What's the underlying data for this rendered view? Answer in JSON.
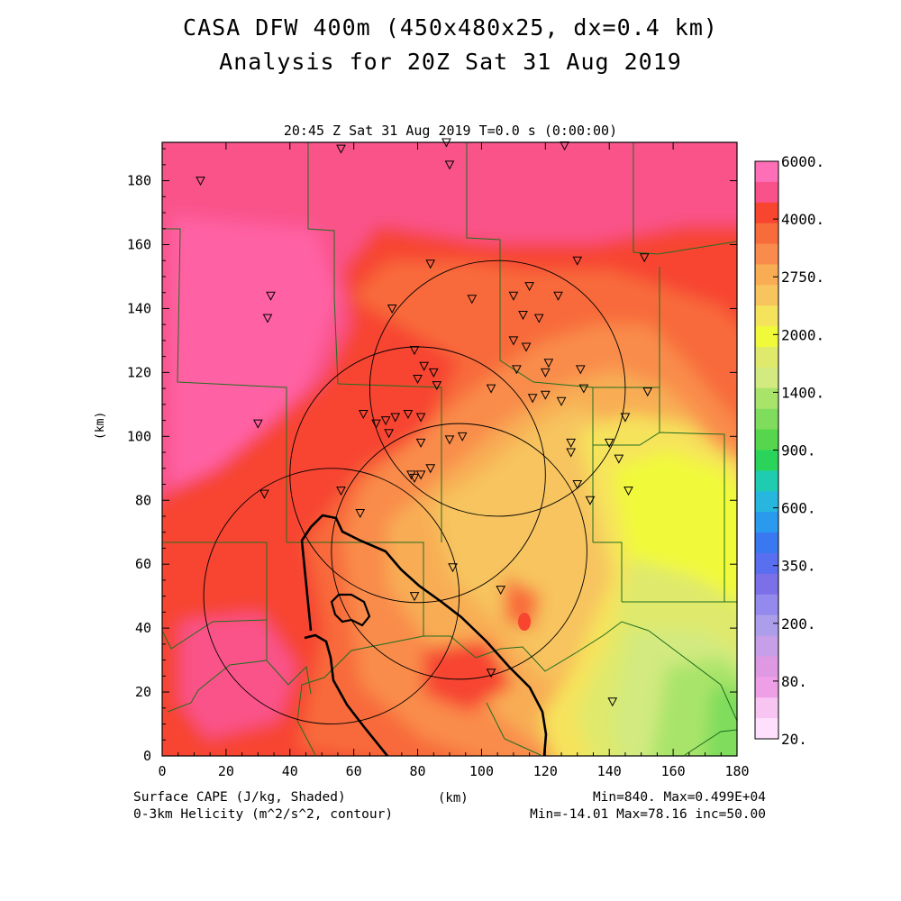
{
  "header": {
    "title_line1": "CASA DFW 400m (450x480x25, dx=0.4 km)",
    "title_line2": "Analysis for 20Z Sat 31 Aug 2019",
    "valid_time": "20:45 Z Sat 31 Aug 2019    T=0.0 s (0:00:00)"
  },
  "axes": {
    "xlabel": "(km)",
    "ylabel": "(km)",
    "x_ticks": [
      "0",
      "20",
      "40",
      "60",
      "80",
      "100",
      "120",
      "140",
      "160",
      "180"
    ],
    "y_ticks": [
      "0",
      "20",
      "40",
      "60",
      "80",
      "100",
      "120",
      "140",
      "160",
      "180"
    ],
    "xlim": [
      0,
      180
    ],
    "ylim": [
      0,
      192
    ]
  },
  "colorbar": {
    "labels": [
      "6000.",
      "4000.",
      "2750.",
      "2000.",
      "1400.",
      "900.",
      "600.",
      "350.",
      "200.",
      "80.",
      "20."
    ],
    "colors": [
      "#ff6fb8",
      "#f9528a",
      "#f74530",
      "#f86b3a",
      "#f98c4c",
      "#f8ad55",
      "#f7c45e",
      "#f6e35c",
      "#f1f93b",
      "#dfe96c",
      "#d2ea80",
      "#a9e46a",
      "#7fdc5c",
      "#55d64c",
      "#2ad45a",
      "#20ccb0",
      "#27b7de",
      "#2a9aee",
      "#3a78f2",
      "#5a6fef",
      "#7b70e8",
      "#9489ec",
      "#ad9eec",
      "#c79ee8",
      "#df98e2",
      "#ef9fe6",
      "#f8c4f2",
      "#ffe0fc"
    ]
  },
  "footer": {
    "field_shaded": "Surface CAPE (J/kg, Shaded)",
    "field_contour": "0-3km Helicity (m^2/s^2, contour)",
    "shaded_stats": "Min=840. Max=0.499E+04",
    "contour_stats": "Min=-14.01 Max=78.16 inc=50.00"
  },
  "map": {
    "colors": {
      "very_high": "#f9528a",
      "high": "#f74530",
      "mid_high": "#f86b3a",
      "mid": "#f98c4c",
      "mid_low": "#f8ad55",
      "low": "#f7c45e",
      "lower": "#f6e35c",
      "yellow": "#f1f93b",
      "pale": "#dfe96c",
      "green_pale": "#d2ea80",
      "green": "#a9e46a",
      "green_dark": "#7fdc5c",
      "border": "#1f7a1f"
    },
    "radar_circles": [
      {
        "center": [
          105,
          115
        ],
        "radius_km": 40
      },
      {
        "center": [
          80,
          88
        ],
        "radius_km": 40
      },
      {
        "center": [
          93,
          64
        ],
        "radius_km": 40
      },
      {
        "center": [
          53,
          50
        ],
        "radius_km": 40
      }
    ],
    "stations": [
      [
        12,
        180
      ],
      [
        56,
        190
      ],
      [
        89,
        192
      ],
      [
        90,
        185
      ],
      [
        126,
        191
      ],
      [
        34,
        144
      ],
      [
        33,
        137
      ],
      [
        72,
        140
      ],
      [
        84,
        154
      ],
      [
        79,
        127
      ],
      [
        97,
        143
      ],
      [
        110,
        144
      ],
      [
        115,
        147
      ],
      [
        124,
        144
      ],
      [
        130,
        155
      ],
      [
        151,
        156
      ],
      [
        113,
        138
      ],
      [
        118,
        137
      ],
      [
        110,
        130
      ],
      [
        114,
        128
      ],
      [
        111,
        121
      ],
      [
        120,
        120
      ],
      [
        121,
        123
      ],
      [
        131,
        121
      ],
      [
        132,
        115
      ],
      [
        152,
        114
      ],
      [
        82,
        122
      ],
      [
        80,
        118
      ],
      [
        85,
        120
      ],
      [
        86,
        116
      ],
      [
        103,
        115
      ],
      [
        116,
        112
      ],
      [
        120,
        113
      ],
      [
        125,
        111
      ],
      [
        145,
        106
      ],
      [
        140,
        98
      ],
      [
        143,
        93
      ],
      [
        146,
        83
      ],
      [
        130,
        85
      ],
      [
        134,
        80
      ],
      [
        30,
        104
      ],
      [
        63,
        107
      ],
      [
        67,
        104
      ],
      [
        70,
        105
      ],
      [
        71,
        101
      ],
      [
        73,
        106
      ],
      [
        77,
        107
      ],
      [
        81,
        106
      ],
      [
        81,
        98
      ],
      [
        90,
        99
      ],
      [
        94,
        100
      ],
      [
        78,
        88
      ],
      [
        79,
        87
      ],
      [
        81,
        88
      ],
      [
        84,
        90
      ],
      [
        56,
        83
      ],
      [
        32,
        82
      ],
      [
        62,
        76
      ],
      [
        128,
        98
      ],
      [
        128,
        95
      ],
      [
        91,
        59
      ],
      [
        79,
        50
      ],
      [
        106,
        52
      ],
      [
        103,
        26
      ],
      [
        141,
        17
      ]
    ]
  }
}
